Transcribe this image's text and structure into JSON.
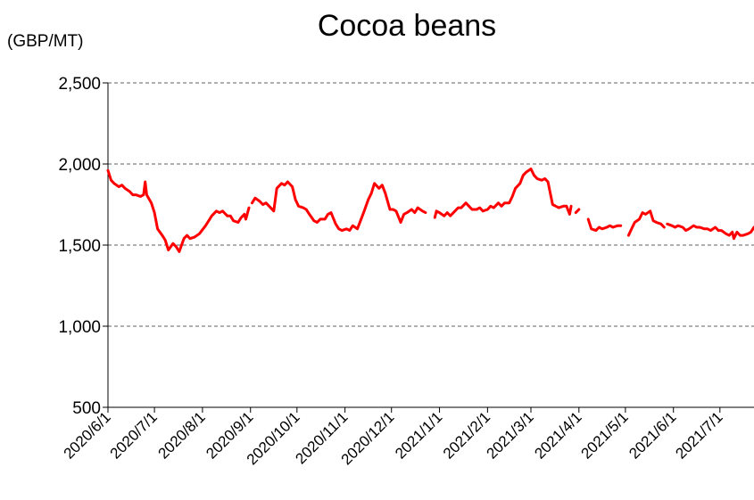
{
  "chart_data": {
    "type": "line",
    "title": "Cocoa beans",
    "unit_label": "(GBP/MT)",
    "ylim": [
      500,
      2500
    ],
    "y_ticks": [
      "2,500",
      "2,000",
      "1,500",
      "1,000",
      "500"
    ],
    "y_tick_values": [
      2500,
      2000,
      1500,
      1000,
      500
    ],
    "grid": "horizontal dashed",
    "legend": "none",
    "x_range": [
      "2020-06-01",
      "2021-07-23"
    ],
    "x_ticks": [
      "2020/6/1",
      "2020/7/1",
      "2020/8/1",
      "2020/9/1",
      "2020/10/1",
      "2020/11/1",
      "2020/12/1",
      "2021/1/1",
      "2021/2/1",
      "2021/3/1",
      "2021/4/1",
      "2021/5/1",
      "2021/6/1",
      "2021/7/1"
    ],
    "x_tick_dates": [
      "2020-06-01",
      "2020-07-01",
      "2020-08-01",
      "2020-09-01",
      "2020-10-01",
      "2020-11-01",
      "2020-12-01",
      "2021-01-01",
      "2021-02-01",
      "2021-03-01",
      "2021-04-01",
      "2021-05-01",
      "2021-06-01",
      "2021-07-01"
    ],
    "series": [
      {
        "color": "#ff0000",
        "segments": [
          [
            [
              "2020-06-01",
              1960
            ],
            [
              "2020-06-03",
              1900
            ],
            [
              "2020-06-05",
              1880
            ],
            [
              "2020-06-08",
              1860
            ],
            [
              "2020-06-10",
              1870
            ],
            [
              "2020-06-12",
              1850
            ],
            [
              "2020-06-15",
              1830
            ],
            [
              "2020-06-17",
              1810
            ],
            [
              "2020-06-19",
              1810
            ],
            [
              "2020-06-22",
              1800
            ],
            [
              "2020-06-24",
              1810
            ],
            [
              "2020-06-25",
              1890
            ],
            [
              "2020-06-26",
              1810
            ],
            [
              "2020-06-29",
              1760
            ],
            [
              "2020-07-01",
              1700
            ],
            [
              "2020-07-03",
              1600
            ],
            [
              "2020-07-06",
              1560
            ],
            [
              "2020-07-08",
              1530
            ],
            [
              "2020-07-10",
              1470
            ],
            [
              "2020-07-13",
              1510
            ],
            [
              "2020-07-15",
              1490
            ],
            [
              "2020-07-17",
              1460
            ],
            [
              "2020-07-20",
              1540
            ],
            [
              "2020-07-22",
              1560
            ],
            [
              "2020-07-24",
              1540
            ],
            [
              "2020-07-27",
              1550
            ],
            [
              "2020-07-30",
              1570
            ],
            [
              "2020-08-03",
              1620
            ],
            [
              "2020-08-05",
              1650
            ],
            [
              "2020-08-07",
              1680
            ],
            [
              "2020-08-10",
              1710
            ],
            [
              "2020-08-12",
              1700
            ],
            [
              "2020-08-14",
              1710
            ],
            [
              "2020-08-17",
              1680
            ],
            [
              "2020-08-19",
              1680
            ],
            [
              "2020-08-21",
              1650
            ],
            [
              "2020-08-24",
              1640
            ],
            [
              "2020-08-26",
              1670
            ],
            [
              "2020-08-28",
              1690
            ],
            [
              "2020-08-29",
              1660
            ],
            [
              "2020-08-31",
              1730
            ]
          ],
          [
            [
              "2020-09-02",
              1760
            ],
            [
              "2020-09-04",
              1790
            ],
            [
              "2020-09-07",
              1770
            ],
            [
              "2020-09-09",
              1750
            ],
            [
              "2020-09-11",
              1760
            ],
            [
              "2020-09-14",
              1730
            ],
            [
              "2020-09-16",
              1710
            ],
            [
              "2020-09-18",
              1850
            ],
            [
              "2020-09-21",
              1880
            ],
            [
              "2020-09-23",
              1870
            ],
            [
              "2020-09-25",
              1890
            ],
            [
              "2020-09-28",
              1860
            ],
            [
              "2020-09-30",
              1780
            ],
            [
              "2020-10-02",
              1740
            ],
            [
              "2020-10-05",
              1730
            ],
            [
              "2020-10-07",
              1720
            ],
            [
              "2020-10-09",
              1690
            ],
            [
              "2020-10-12",
              1650
            ],
            [
              "2020-10-14",
              1640
            ],
            [
              "2020-10-16",
              1660
            ],
            [
              "2020-10-19",
              1660
            ],
            [
              "2020-10-21",
              1690
            ],
            [
              "2020-10-23",
              1700
            ],
            [
              "2020-10-26",
              1630
            ],
            [
              "2020-10-28",
              1600
            ],
            [
              "2020-10-30",
              1590
            ],
            [
              "2020-11-02",
              1600
            ],
            [
              "2020-11-04",
              1590
            ],
            [
              "2020-11-06",
              1620
            ],
            [
              "2020-11-09",
              1600
            ],
            [
              "2020-11-11",
              1650
            ],
            [
              "2020-11-13",
              1700
            ],
            [
              "2020-11-16",
              1780
            ],
            [
              "2020-11-18",
              1820
            ],
            [
              "2020-11-20",
              1880
            ],
            [
              "2020-11-23",
              1850
            ],
            [
              "2020-11-25",
              1870
            ],
            [
              "2020-11-27",
              1820
            ],
            [
              "2020-11-30",
              1720
            ],
            [
              "2020-12-02",
              1720
            ],
            [
              "2020-12-04",
              1710
            ],
            [
              "2020-12-07",
              1640
            ],
            [
              "2020-12-09",
              1690
            ],
            [
              "2020-12-11",
              1700
            ],
            [
              "2020-12-14",
              1720
            ],
            [
              "2020-12-16",
              1700
            ],
            [
              "2020-12-18",
              1730
            ],
            [
              "2020-12-21",
              1710
            ],
            [
              "2020-12-23",
              1700
            ]
          ],
          [
            [
              "2020-12-29",
              1670
            ],
            [
              "2020-12-30",
              1710
            ],
            [
              "2021-01-01",
              1700
            ],
            [
              "2021-01-04",
              1680
            ],
            [
              "2021-01-06",
              1700
            ],
            [
              "2021-01-08",
              1680
            ],
            [
              "2021-01-11",
              1710
            ],
            [
              "2021-01-13",
              1730
            ],
            [
              "2021-01-15",
              1730
            ],
            [
              "2021-01-18",
              1760
            ],
            [
              "2021-01-20",
              1740
            ],
            [
              "2021-01-22",
              1720
            ],
            [
              "2021-01-25",
              1720
            ],
            [
              "2021-01-27",
              1730
            ],
            [
              "2021-01-29",
              1710
            ],
            [
              "2021-02-01",
              1720
            ],
            [
              "2021-02-03",
              1740
            ],
            [
              "2021-02-05",
              1730
            ],
            [
              "2021-02-08",
              1760
            ],
            [
              "2021-02-10",
              1740
            ],
            [
              "2021-02-12",
              1760
            ],
            [
              "2021-02-15",
              1760
            ],
            [
              "2021-02-17",
              1800
            ],
            [
              "2021-02-19",
              1850
            ],
            [
              "2021-02-22",
              1880
            ],
            [
              "2021-02-24",
              1930
            ],
            [
              "2021-02-26",
              1950
            ],
            [
              "2021-03-01",
              1970
            ],
            [
              "2021-03-03",
              1930
            ],
            [
              "2021-03-05",
              1910
            ],
            [
              "2021-03-08",
              1900
            ],
            [
              "2021-03-10",
              1910
            ],
            [
              "2021-03-12",
              1890
            ],
            [
              "2021-03-15",
              1750
            ],
            [
              "2021-03-17",
              1740
            ],
            [
              "2021-03-19",
              1730
            ],
            [
              "2021-03-22",
              1740
            ],
            [
              "2021-03-24",
              1740
            ],
            [
              "2021-03-26",
              1690
            ],
            [
              "2021-03-27",
              1740
            ]
          ],
          [
            [
              "2021-03-30",
              1700
            ],
            [
              "2021-04-01",
              1720
            ]
          ],
          [
            [
              "2021-04-07",
              1660
            ],
            [
              "2021-04-09",
              1600
            ],
            [
              "2021-04-12",
              1590
            ],
            [
              "2021-04-14",
              1610
            ],
            [
              "2021-04-16",
              1600
            ],
            [
              "2021-04-19",
              1610
            ],
            [
              "2021-04-21",
              1620
            ],
            [
              "2021-04-23",
              1610
            ],
            [
              "2021-04-26",
              1620
            ],
            [
              "2021-04-28",
              1620
            ]
          ],
          [
            [
              "2021-05-03",
              1560
            ],
            [
              "2021-05-05",
              1600
            ],
            [
              "2021-05-07",
              1640
            ],
            [
              "2021-05-10",
              1660
            ],
            [
              "2021-05-12",
              1700
            ],
            [
              "2021-05-14",
              1690
            ],
            [
              "2021-05-17",
              1710
            ],
            [
              "2021-05-19",
              1650
            ],
            [
              "2021-05-21",
              1640
            ],
            [
              "2021-05-24",
              1630
            ],
            [
              "2021-05-26",
              1610
            ]
          ],
          [
            [
              "2021-05-28",
              1630
            ],
            [
              "2021-05-31",
              1620
            ],
            [
              "2021-06-02",
              1610
            ],
            [
              "2021-06-04",
              1620
            ],
            [
              "2021-06-07",
              1610
            ],
            [
              "2021-06-09",
              1590
            ],
            [
              "2021-06-11",
              1600
            ],
            [
              "2021-06-14",
              1620
            ],
            [
              "2021-06-16",
              1610
            ],
            [
              "2021-06-18",
              1610
            ],
            [
              "2021-06-21",
              1600
            ],
            [
              "2021-06-23",
              1600
            ],
            [
              "2021-06-25",
              1590
            ],
            [
              "2021-06-28",
              1610
            ],
            [
              "2021-06-30",
              1590
            ],
            [
              "2021-07-02",
              1590
            ],
            [
              "2021-07-05",
              1570
            ],
            [
              "2021-07-07",
              1560
            ],
            [
              "2021-07-09",
              1580
            ],
            [
              "2021-07-10",
              1540
            ],
            [
              "2021-07-12",
              1580
            ],
            [
              "2021-07-14",
              1560
            ],
            [
              "2021-07-16",
              1560
            ],
            [
              "2021-07-19",
              1570
            ],
            [
              "2021-07-21",
              1580
            ],
            [
              "2021-07-23",
              1610
            ]
          ]
        ]
      }
    ]
  }
}
